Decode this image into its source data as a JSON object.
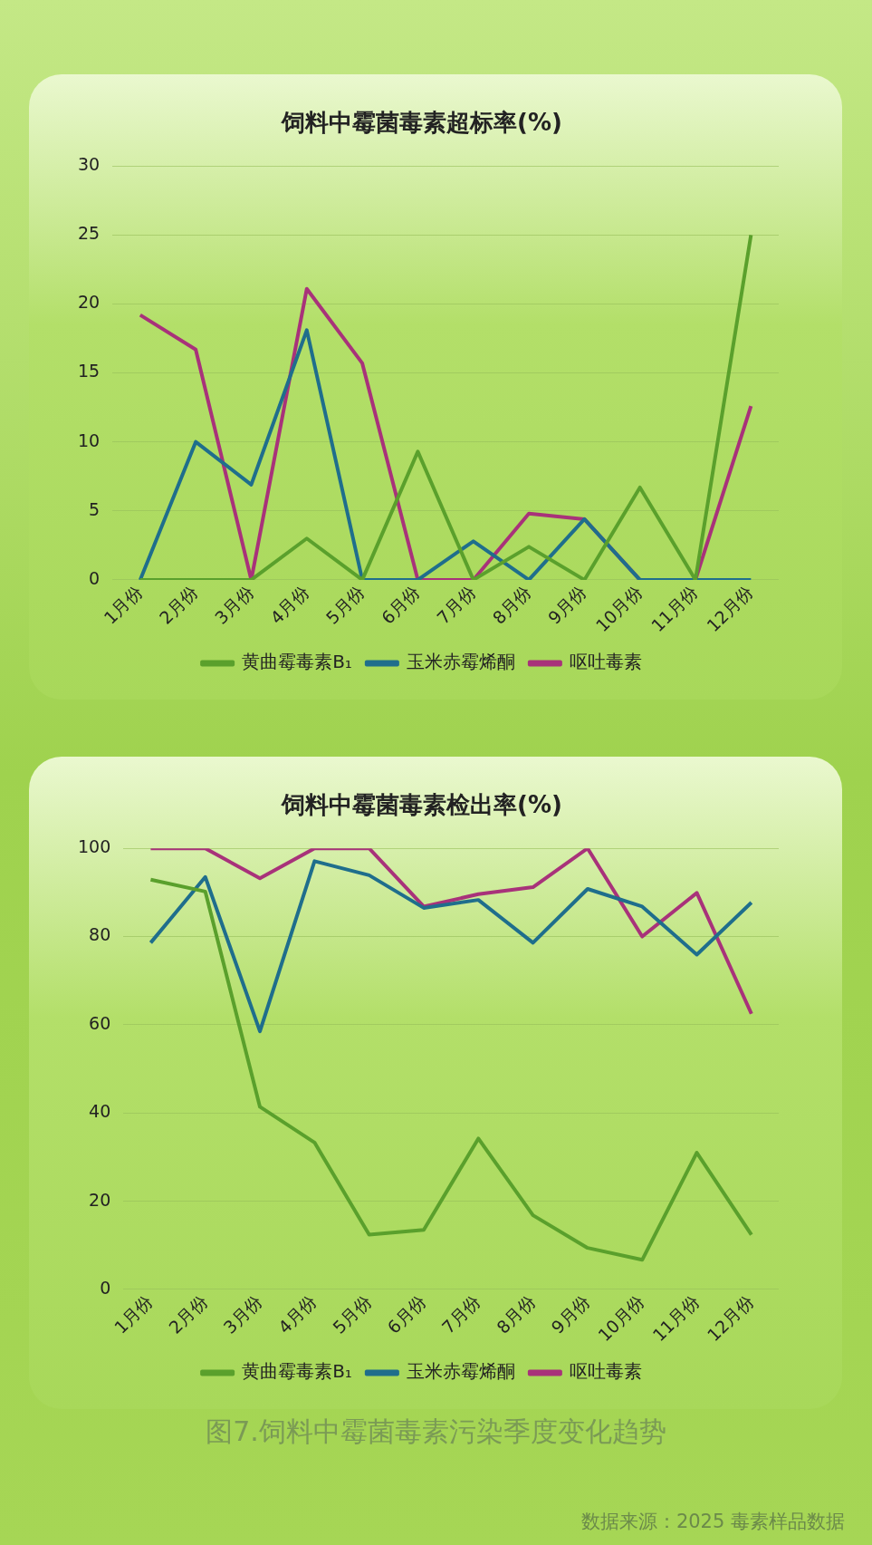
{
  "chart_data": [
    {
      "type": "line",
      "title": "饲料中霉菌毒素超标率(%)",
      "categories": [
        "1月份",
        "2月份",
        "3月份",
        "4月份",
        "5月份",
        "6月份",
        "7月份",
        "8月份",
        "9月份",
        "10月份",
        "11月份",
        "12月份"
      ],
      "series": [
        {
          "name": "黄曲霉毒素B₁",
          "color": "#5aa02c",
          "values": [
            0,
            0,
            0,
            3.0,
            0,
            9.3,
            0,
            2.4,
            0,
            6.7,
            0,
            25
          ]
        },
        {
          "name": "玉米赤霉烯酮",
          "color": "#1f6e8c",
          "values": [
            0,
            10,
            6.9,
            18.1,
            0,
            0,
            2.8,
            0,
            4.4,
            0,
            0,
            0
          ]
        },
        {
          "name": "呕吐毒素",
          "color": "#a8327a",
          "values": [
            19.2,
            16.7,
            0,
            21.1,
            15.7,
            0,
            0,
            4.8,
            4.4,
            0,
            0,
            12.6
          ]
        }
      ],
      "ylim": [
        0,
        30
      ],
      "yticks": [
        0,
        5,
        10,
        15,
        20,
        25,
        30
      ],
      "grid": "y",
      "legend": "bottom",
      "marker": "none",
      "line_style": "solid"
    },
    {
      "type": "line",
      "title": "饲料中霉菌毒素检出率(%)",
      "categories": [
        "1月份",
        "2月份",
        "3月份",
        "4月份",
        "5月份",
        "6月份",
        "7月份",
        "8月份",
        "9月份",
        "10月份",
        "11月份",
        "12月份"
      ],
      "series": [
        {
          "name": "黄曲霉毒素B₁",
          "color": "#5aa02c",
          "values": [
            92.9,
            90.2,
            41.4,
            33.3,
            12.4,
            13.5,
            34.2,
            16.8,
            9.4,
            6.7,
            31,
            12.4
          ]
        },
        {
          "name": "玉米赤霉烯酮",
          "color": "#1f6e8c",
          "values": [
            78.6,
            93.5,
            58.5,
            97.1,
            93.9,
            86.5,
            88.3,
            78.6,
            90.8,
            86.8,
            75.9,
            87.7
          ]
        },
        {
          "name": "呕吐毒素",
          "color": "#a8327a",
          "values": [
            100,
            100,
            93.2,
            100,
            100,
            86.8,
            89.6,
            91.2,
            100,
            80,
            89.9,
            62.5
          ]
        }
      ],
      "ylim": [
        0,
        100
      ],
      "yticks": [
        0,
        20,
        40,
        60,
        80,
        100
      ],
      "grid": "y",
      "legend": "bottom",
      "marker": "none",
      "line_style": "solid",
      "annotations": [
        "图7.饲料中霉菌毒素污染季度变化趋势",
        "数据来源：2025 毒素样品数据"
      ]
    }
  ]
}
